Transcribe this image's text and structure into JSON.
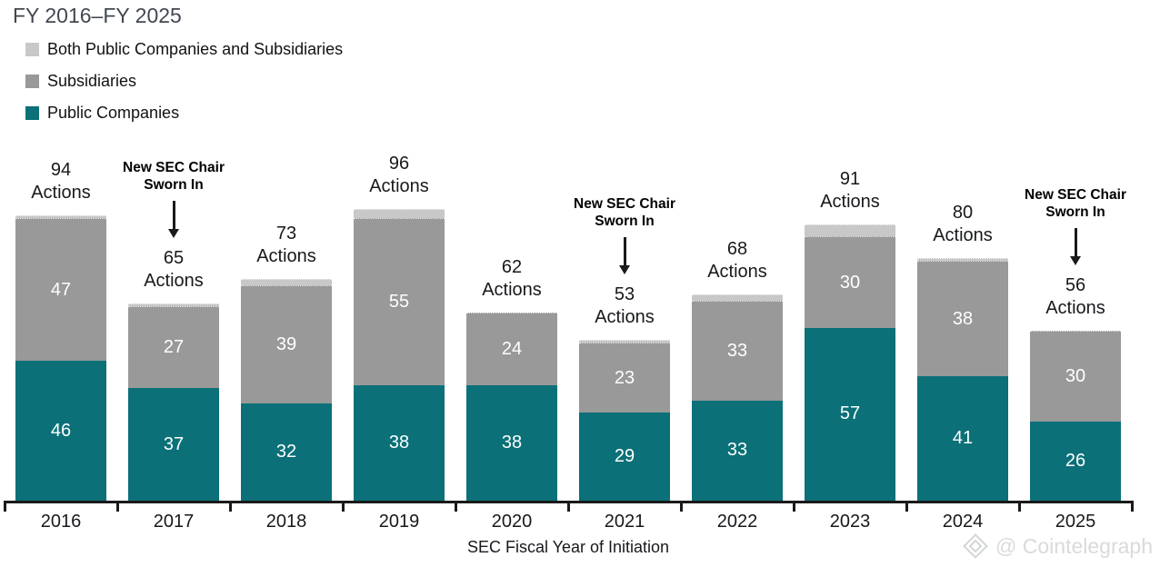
{
  "header": {
    "title": "FY 2016–FY 2025"
  },
  "chart_data": {
    "type": "bar",
    "stacked": true,
    "title": "FY 2016–FY 2025",
    "categories": [
      "2016",
      "2017",
      "2018",
      "2019",
      "2020",
      "2021",
      "2022",
      "2023",
      "2024",
      "2025"
    ],
    "series": [
      {
        "name": "Public Companies",
        "color": "#0B7078",
        "values": [
          46,
          37,
          32,
          38,
          38,
          29,
          33,
          57,
          41,
          26
        ]
      },
      {
        "name": "Subsidiaries",
        "color": "#999999",
        "values": [
          47,
          27,
          39,
          55,
          24,
          23,
          33,
          30,
          38,
          30
        ]
      },
      {
        "name": "Both Public Companies and Subsidiaries",
        "color": "#C8C8C8",
        "values": [
          1,
          1,
          2,
          3,
          0,
          1,
          2,
          4,
          1,
          0
        ]
      }
    ],
    "totals": [
      94,
      65,
      73,
      96,
      62,
      53,
      68,
      91,
      80,
      56
    ],
    "total_label_word": "Actions",
    "xlabel": "SEC Fiscal Year of Initiation",
    "ylim": [
      0,
      100
    ],
    "grid": false,
    "legend_position": "top-left",
    "legend_order": [
      "Both Public Companies and Subsidiaries",
      "Subsidiaries",
      "Public Companies"
    ],
    "annotations": [
      {
        "category": "2017",
        "lines": [
          "New SEC Chair",
          "Sworn In"
        ]
      },
      {
        "category": "2021",
        "lines": [
          "New SEC Chair",
          "Sworn In"
        ]
      },
      {
        "category": "2025",
        "lines": [
          "New SEC Chair",
          "Sworn In"
        ]
      }
    ]
  },
  "colors": {
    "teal": "#0B7078",
    "gray": "#999999",
    "light_gray": "#C8C8C8",
    "axis": "#1a1a1a",
    "title_text": "#414750",
    "watermark": "#d9dadb"
  },
  "watermark": {
    "text": "@ Cointelegraph",
    "logo": "cointelegraph-diamond-logo"
  }
}
